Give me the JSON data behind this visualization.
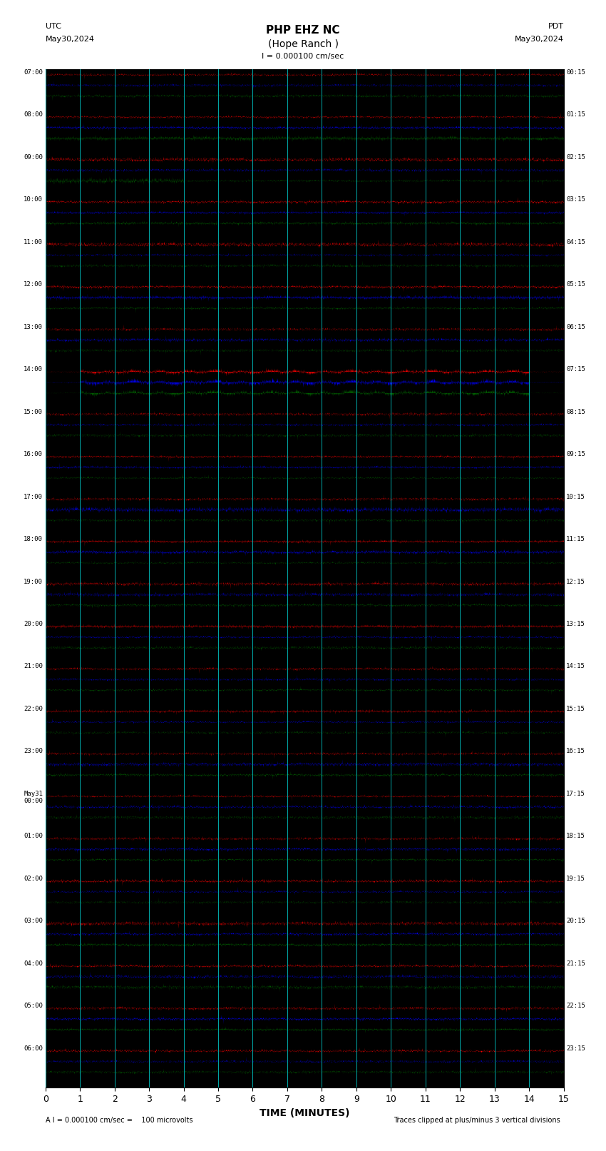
{
  "title_line1": "PHP EHZ NC",
  "title_line2": "(Hope Ranch )",
  "title_line3": "I = 0.000100 cm/sec",
  "left_label_line1": "UTC",
  "left_label_line2": "May30,2024",
  "right_label_line1": "PDT",
  "right_label_line2": "May30,2024",
  "xlabel": "TIME (MINUTES)",
  "footer_left": "A I = 0.000100 cm/sec =    100 microvolts",
  "footer_right": "Traces clipped at plus/minus 3 vertical divisions",
  "utc_times": [
    "07:00",
    "08:00",
    "09:00",
    "10:00",
    "11:00",
    "12:00",
    "13:00",
    "14:00",
    "15:00",
    "16:00",
    "17:00",
    "18:00",
    "19:00",
    "20:00",
    "21:00",
    "22:00",
    "23:00",
    "May31\n00:00",
    "01:00",
    "02:00",
    "03:00",
    "04:00",
    "05:00",
    "06:00"
  ],
  "pdt_times": [
    "00:15",
    "01:15",
    "02:15",
    "03:15",
    "04:15",
    "05:15",
    "06:15",
    "07:15",
    "08:15",
    "09:15",
    "10:15",
    "11:15",
    "12:15",
    "13:15",
    "14:15",
    "15:15",
    "16:15",
    "17:15",
    "18:15",
    "19:15",
    "20:15",
    "21:15",
    "22:15",
    "23:15"
  ],
  "n_traces": 24,
  "x_min": 0,
  "x_max": 15,
  "x_ticks": [
    0,
    1,
    2,
    3,
    4,
    5,
    6,
    7,
    8,
    9,
    10,
    11,
    12,
    13,
    14,
    15
  ],
  "band_colors": [
    "#ff0000",
    "#0000ff",
    "#006400",
    "#000000"
  ],
  "bg_color": "#000000",
  "grid_color": "#00aaaa",
  "grid_linewidth": 0.7,
  "fig_width": 8.5,
  "fig_height": 16.13,
  "dpi": 100
}
